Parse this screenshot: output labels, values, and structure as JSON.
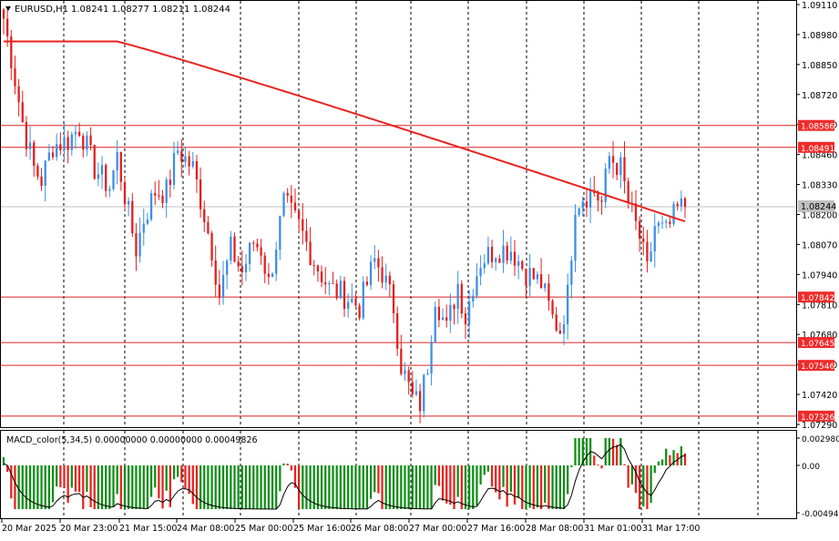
{
  "header": {
    "symbol_tf": "EURUSD,H1",
    "ohlc": "1.08241 1.08277 1.08211 1.08244"
  },
  "macd": {
    "label": "MACD_color(5,34,5) 0.00000000 0.00000000 0.00049826",
    "ticks": [
      "0.0029802",
      "0.00",
      "-0.0049402"
    ]
  },
  "price_axis": {
    "ticks": [
      "1.09110",
      "1.08980",
      "1.08850",
      "1.08720",
      "1.08590",
      "1.08460",
      "1.08330",
      "1.08200",
      "1.08070",
      "1.07940",
      "1.07810",
      "1.07680",
      "1.07550",
      "1.07420",
      "1.07290"
    ],
    "current_price": "1.08244"
  },
  "hlines": [
    {
      "value": "1.08586",
      "price": 1.08586
    },
    {
      "value": "1.08491",
      "price": 1.08491
    },
    {
      "value": "1.07842",
      "price": 1.07842
    },
    {
      "value": "1.07645",
      "price": 1.07645
    },
    {
      "value": "1.07546",
      "price": 1.07546
    },
    {
      "value": "1.07326",
      "price": 1.07326
    }
  ],
  "time_axis": [
    "20 Mar 2025",
    "20 Mar 23:00",
    "21 Mar 15:00",
    "24 Mar 08:00",
    "25 Mar 00:00",
    "25 Mar 16:00",
    "26 Mar 08:00",
    "27 Mar 00:00",
    "27 Mar 16:00",
    "28 Mar 08:00",
    "31 Mar 01:00",
    "31 Mar 17:00"
  ],
  "colors": {
    "bull": "#3c8fe6",
    "bear": "#e02020",
    "ma": "#e8231f",
    "hline": "#e02020",
    "macd_pos": "#0f8f17",
    "macd_neg": "#e8231f",
    "label_bg": "#ef2b2b",
    "grid": "#000000"
  },
  "chart_data": {
    "type": "candlestick",
    "ylim": [
      1.0729,
      1.0911
    ],
    "ma_ends": [
      1.0895,
      1.0817
    ],
    "anchors": [
      [
        0,
        1.0905
      ],
      [
        2,
        1.0888
      ],
      [
        5,
        1.086
      ],
      [
        8,
        1.084
      ],
      [
        10,
        1.0835
      ],
      [
        13,
        1.085
      ],
      [
        17,
        1.0852
      ],
      [
        20,
        1.0858
      ],
      [
        24,
        1.084
      ],
      [
        28,
        1.0832
      ],
      [
        30,
        1.0845
      ],
      [
        33,
        1.082
      ],
      [
        35,
        1.0805
      ],
      [
        37,
        1.0818
      ],
      [
        40,
        1.083
      ],
      [
        43,
        1.083
      ],
      [
        46,
        1.0848
      ],
      [
        50,
        1.084
      ],
      [
        53,
        1.082
      ],
      [
        55,
        1.0805
      ],
      [
        57,
        1.0785
      ],
      [
        60,
        1.0805
      ],
      [
        63,
        1.0795
      ],
      [
        66,
        1.0808
      ],
      [
        68,
        1.0805
      ],
      [
        70,
        1.079
      ],
      [
        74,
        1.0825
      ],
      [
        78,
        1.0815
      ],
      [
        82,
        1.08
      ],
      [
        86,
        1.0788
      ],
      [
        90,
        1.0785
      ],
      [
        94,
        1.078
      ],
      [
        98,
        1.08
      ],
      [
        100,
        1.0795
      ],
      [
        103,
        1.078
      ],
      [
        105,
        1.0755
      ],
      [
        108,
        1.074
      ],
      [
        110,
        1.0738
      ],
      [
        112,
        1.0755
      ],
      [
        114,
        1.0785
      ],
      [
        117,
        1.077
      ],
      [
        120,
        1.079
      ],
      [
        122,
        1.0775
      ],
      [
        124,
        1.079
      ],
      [
        126,
        1.08
      ],
      [
        130,
        1.0805
      ],
      [
        134,
        1.0805
      ],
      [
        138,
        1.0795
      ],
      [
        142,
        1.079
      ],
      [
        145,
        1.0775
      ],
      [
        147,
        1.077
      ],
      [
        149,
        1.0785
      ],
      [
        151,
        1.0825
      ],
      [
        153,
        1.0828
      ],
      [
        156,
        1.083
      ],
      [
        158,
        1.0825
      ],
      [
        160,
        1.0845
      ],
      [
        163,
        1.084
      ],
      [
        165,
        1.0825
      ],
      [
        168,
        1.081
      ],
      [
        170,
        1.0795
      ],
      [
        172,
        1.0815
      ],
      [
        175,
        1.0812
      ],
      [
        178,
        1.0822
      ],
      [
        180,
        1.0824
      ]
    ]
  }
}
